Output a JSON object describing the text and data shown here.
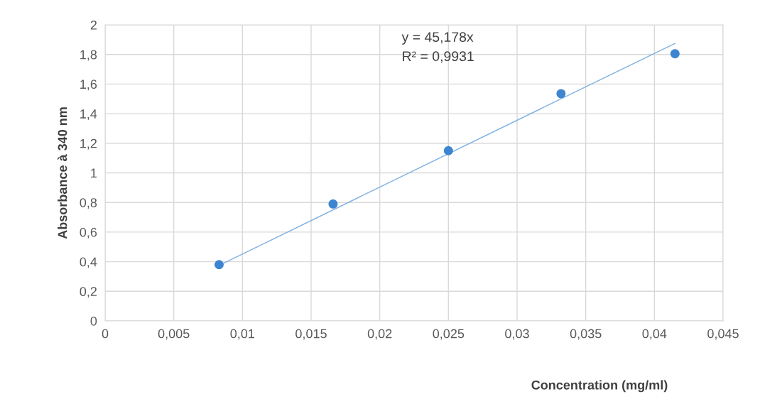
{
  "chart_data": {
    "type": "scatter",
    "xlabel": "Concentration (mg/ml)",
    "ylabel": "Absorbance à 340 nm",
    "series": [
      {
        "marker": "circle",
        "color": "#3d85d1",
        "x": [
          0.0083,
          0.0166,
          0.025,
          0.0332,
          0.0415
        ],
        "values": [
          0.38,
          0.79,
          1.15,
          1.535,
          1.805
        ]
      },
      {
        "type": "line",
        "color": "#7fb0e0",
        "x": [
          0.0083,
          0.0415
        ],
        "values": [
          0.375,
          1.875
        ]
      }
    ],
    "annotations": [
      "y = 45,178x",
      "R² = 0,9931"
    ],
    "xlim": [
      0,
      0.045
    ],
    "ylim": [
      0,
      2
    ],
    "xticks": [
      0,
      {
        "value": 0.005,
        "label": "0,005"
      },
      {
        "value": 0.01,
        "label": "0,01"
      },
      {
        "value": 0.015,
        "label": "0,015"
      },
      {
        "value": 0.02,
        "label": "0,02"
      },
      {
        "value": 0.025,
        "label": "0,025"
      },
      {
        "value": 0.03,
        "label": "0,03"
      },
      {
        "value": 0.035,
        "label": "0,035"
      },
      {
        "value": 0.04,
        "label": "0,04"
      },
      {
        "value": 0.045,
        "label": "0,045"
      }
    ],
    "yticks": [
      0,
      {
        "value": 0.2,
        "label": "0,2"
      },
      {
        "value": 0.4,
        "label": "0,4"
      },
      {
        "value": 0.6,
        "label": "0,6"
      },
      {
        "value": 0.8,
        "label": "0,8"
      },
      1,
      {
        "value": 1.2,
        "label": "1,2"
      },
      {
        "value": 1.4,
        "label": "1,4"
      },
      {
        "value": 1.6,
        "label": "1,6"
      },
      {
        "value": 1.8,
        "label": "1,8"
      },
      2
    ],
    "grid": true
  }
}
